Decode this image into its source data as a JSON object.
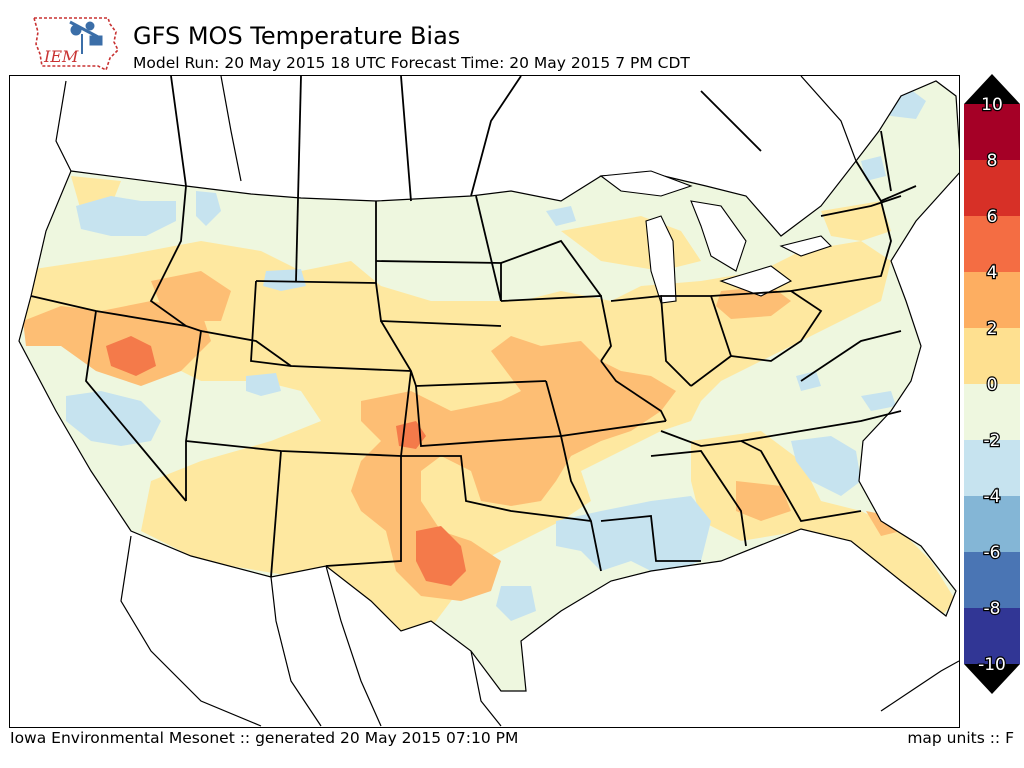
{
  "header": {
    "title": "GFS MOS Temperature Bias",
    "subtitle": "Model Run: 20 May 2015 18 UTC Forecast Time: 20 May 2015 7 PM CDT",
    "logo_text": "IEM"
  },
  "footer": {
    "credit": "Iowa Environmental Mesonet :: generated 20 May 2015 07:10 PM",
    "units": "map units :: F"
  },
  "legend": {
    "labels": [
      "10",
      "8",
      "6",
      "4",
      "2",
      "0",
      "-2",
      "-4",
      "-6",
      "-8",
      "-10"
    ],
    "colors": [
      "#a50026",
      "#d73027",
      "#f46d43",
      "#fdae61",
      "#fee090",
      "#eef7df",
      "#c6e3ef",
      "#84b6d6",
      "#4a75b4",
      "#313695"
    ],
    "over_color": "#000000",
    "under_color": "#000000"
  },
  "colors": {
    "background_zero": "#eef7df",
    "warm_2": "#fee8a0",
    "warm_4": "#fdbe74",
    "warm_6": "#f47a4a",
    "warm_8": "#e04a30",
    "cool_2": "#c6e3ef",
    "cool_4": "#9cc8e2"
  }
}
